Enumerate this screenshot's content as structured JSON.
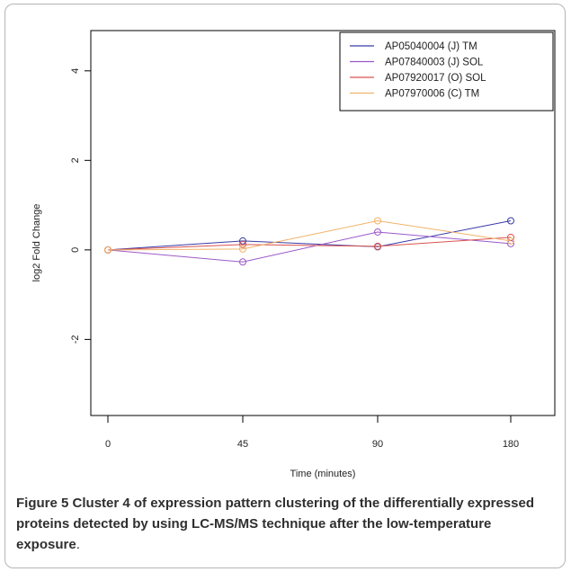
{
  "chart_data": {
    "type": "line",
    "title": "",
    "xlabel": "Time (minutes)",
    "ylabel": "log2 Fold Change",
    "x_categories": [
      "0",
      "45",
      "90",
      "180"
    ],
    "yticks": [
      "-2",
      "0",
      "2",
      "4"
    ],
    "ylim": [
      -3.7,
      4.9
    ],
    "legend_position": "top-right",
    "series": [
      {
        "name": "AP05040004 (J) TM",
        "color": "#3a3aa8",
        "values": [
          0,
          0.2,
          0.07,
          0.65
        ]
      },
      {
        "name": "AP07840003 (J) SOL",
        "color": "#9b59c9",
        "values": [
          0,
          -0.27,
          0.4,
          0.14
        ]
      },
      {
        "name": "AP07920017 (O) SOL",
        "color": "#d9534f",
        "values": [
          0,
          0.12,
          0.08,
          0.28
        ]
      },
      {
        "name": "AP07970006 (C) TM",
        "color": "#f0b36a",
        "values": [
          0,
          0.02,
          0.65,
          0.2
        ]
      }
    ]
  },
  "caption": {
    "label": "Figure 5",
    "text": " Cluster 4 of expression pattern clustering of the differentially expressed proteins detected by using LC-MS/MS technique after the low-temperature exposure",
    "end": "."
  }
}
